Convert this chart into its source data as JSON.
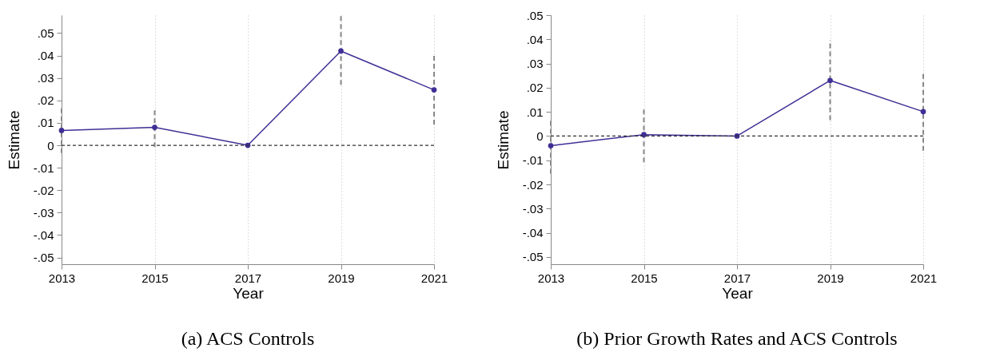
{
  "chart_data": [
    {
      "type": "line",
      "title": "(a) ACS Controls",
      "xlabel": "Year",
      "ylabel": "Estimate",
      "x": [
        2013,
        2015,
        2017,
        2019,
        2021
      ],
      "xlim": [
        2013,
        2021
      ],
      "xticks": [
        2013,
        2015,
        2017,
        2019,
        2021
      ],
      "series": [
        {
          "color": "#3f2f95",
          "values": [
            0.0066,
            0.008,
            0,
            0.042,
            0.0247
          ],
          "errors": [
            [
              -0.0035,
              0.0166
            ],
            [
              -0.0008,
              0.017
            ],
            null,
            [
              0.027,
              0.058
            ],
            [
              0.0093,
              0.04
            ]
          ]
        }
      ],
      "ylim": [
        -0.053,
        0.058
      ],
      "yticks": [
        {
          "value": -0.05,
          "label": "-.05"
        },
        {
          "value": -0.04,
          "label": "-.04"
        },
        {
          "value": -0.03,
          "label": "-.03"
        },
        {
          "value": -0.02,
          "label": "-.02"
        },
        {
          "value": -0.01,
          "label": "-.01"
        },
        0,
        {
          "value": 0.01,
          "label": ".01"
        },
        {
          "value": 0.02,
          "label": ".02"
        },
        {
          "value": 0.03,
          "label": ".03"
        },
        {
          "value": 0.04,
          "label": ".04"
        },
        {
          "value": 0.05,
          "label": ".05"
        }
      ],
      "ref_lines": [
        {
          "axis": "y",
          "value": 0,
          "line_style": "dashed",
          "color": "#333333"
        }
      ],
      "grid": "x",
      "marker": "circle",
      "line_style": "solid"
    },
    {
      "type": "line",
      "title": "(b) Prior Growth Rates and ACS Controls",
      "xlabel": "Year",
      "ylabel": "Estimate",
      "x": [
        2013,
        2015,
        2017,
        2019,
        2021
      ],
      "xlim": [
        2013,
        2021
      ],
      "xticks": [
        2013,
        2015,
        2017,
        2019,
        2021
      ],
      "series": [
        {
          "color": "#3f2f95",
          "values": [
            -0.004,
            0.0006,
            0,
            0.023,
            0.0101
          ],
          "errors": [
            [
              -0.0155,
              0.0075
            ],
            [
              -0.0108,
              0.0122
            ],
            null,
            [
              0.0066,
              0.0398
            ],
            [
              -0.006,
              0.0265
            ]
          ]
        }
      ],
      "ylim": [
        -0.053,
        0.05
      ],
      "yticks": [
        {
          "value": -0.05,
          "label": "-.05"
        },
        {
          "value": -0.04,
          "label": "-.04"
        },
        {
          "value": -0.03,
          "label": "-.03"
        },
        {
          "value": -0.02,
          "label": "-.02"
        },
        {
          "value": -0.01,
          "label": "-.01"
        },
        0,
        {
          "value": 0.01,
          "label": ".01"
        },
        {
          "value": 0.02,
          "label": ".02"
        },
        {
          "value": 0.03,
          "label": ".03"
        },
        {
          "value": 0.04,
          "label": ".04"
        },
        {
          "value": 0.05,
          "label": ".05"
        }
      ],
      "ref_lines": [
        {
          "axis": "y",
          "value": 0,
          "line_style": "dashed",
          "color": "#333333"
        }
      ],
      "grid": "x",
      "marker": "circle",
      "line_style": "solid"
    }
  ]
}
